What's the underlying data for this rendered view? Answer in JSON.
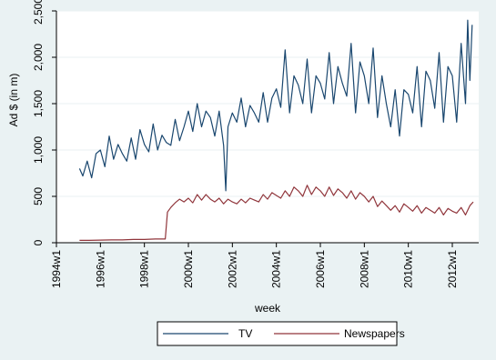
{
  "chart_data": {
    "type": "line",
    "title": "",
    "xlabel": "week",
    "ylabel": "Ad $ (in m)",
    "xlim": [
      1994.0,
      2013.2
    ],
    "ylim": [
      0,
      2500
    ],
    "grid": "horizontal",
    "legend_position": "bottom",
    "y_ticks": [
      {
        "value": 0,
        "label": "0"
      },
      {
        "value": 500,
        "label": "500"
      },
      {
        "value": 1000,
        "label": "1,000"
      },
      {
        "value": 1500,
        "label": "1,500"
      },
      {
        "value": 2000,
        "label": "2,000"
      },
      {
        "value": 2500,
        "label": "2,500"
      }
    ],
    "x_ticks": [
      {
        "value": 1994,
        "label": "1994w1"
      },
      {
        "value": 1996,
        "label": "1996w1"
      },
      {
        "value": 1998,
        "label": "1998w1"
      },
      {
        "value": 2000,
        "label": "2000w1"
      },
      {
        "value": 2002,
        "label": "2002w1"
      },
      {
        "value": 2004,
        "label": "2004w1"
      },
      {
        "value": 2006,
        "label": "2006w1"
      },
      {
        "value": 2008,
        "label": "2008w1"
      },
      {
        "value": 2010,
        "label": "2010w1"
      },
      {
        "value": 2012,
        "label": "2012w1"
      }
    ],
    "series": [
      {
        "name": "TV",
        "color": "#1a476f",
        "points": [
          [
            1995.05,
            800
          ],
          [
            1995.2,
            720
          ],
          [
            1995.4,
            880
          ],
          [
            1995.6,
            700
          ],
          [
            1995.8,
            960
          ],
          [
            1996.0,
            1000
          ],
          [
            1996.2,
            820
          ],
          [
            1996.4,
            1150
          ],
          [
            1996.6,
            900
          ],
          [
            1996.8,
            1060
          ],
          [
            1997.0,
            960
          ],
          [
            1997.2,
            880
          ],
          [
            1997.4,
            1130
          ],
          [
            1997.6,
            900
          ],
          [
            1997.8,
            1220
          ],
          [
            1998.0,
            1060
          ],
          [
            1998.2,
            980
          ],
          [
            1998.4,
            1280
          ],
          [
            1998.6,
            1000
          ],
          [
            1998.8,
            1160
          ],
          [
            1999.0,
            1080
          ],
          [
            1999.2,
            1050
          ],
          [
            1999.4,
            1330
          ],
          [
            1999.6,
            1100
          ],
          [
            1999.8,
            1250
          ],
          [
            2000.0,
            1420
          ],
          [
            2000.2,
            1200
          ],
          [
            2000.4,
            1500
          ],
          [
            2000.6,
            1250
          ],
          [
            2000.8,
            1420
          ],
          [
            2001.0,
            1350
          ],
          [
            2001.2,
            1150
          ],
          [
            2001.4,
            1420
          ],
          [
            2001.6,
            1050
          ],
          [
            2001.7,
            560
          ],
          [
            2001.8,
            1250
          ],
          [
            2002.0,
            1400
          ],
          [
            2002.2,
            1300
          ],
          [
            2002.4,
            1560
          ],
          [
            2002.6,
            1250
          ],
          [
            2002.8,
            1480
          ],
          [
            2003.0,
            1400
          ],
          [
            2003.2,
            1300
          ],
          [
            2003.4,
            1620
          ],
          [
            2003.6,
            1300
          ],
          [
            2003.8,
            1560
          ],
          [
            2004.0,
            1660
          ],
          [
            2004.2,
            1460
          ],
          [
            2004.4,
            2080
          ],
          [
            2004.6,
            1400
          ],
          [
            2004.8,
            1800
          ],
          [
            2005.0,
            1700
          ],
          [
            2005.2,
            1500
          ],
          [
            2005.4,
            1980
          ],
          [
            2005.6,
            1400
          ],
          [
            2005.8,
            1800
          ],
          [
            2006.0,
            1720
          ],
          [
            2006.2,
            1550
          ],
          [
            2006.4,
            2050
          ],
          [
            2006.6,
            1500
          ],
          [
            2006.8,
            1900
          ],
          [
            2007.0,
            1720
          ],
          [
            2007.2,
            1580
          ],
          [
            2007.4,
            2150
          ],
          [
            2007.6,
            1400
          ],
          [
            2007.8,
            1950
          ],
          [
            2008.0,
            1800
          ],
          [
            2008.2,
            1500
          ],
          [
            2008.4,
            2100
          ],
          [
            2008.6,
            1350
          ],
          [
            2008.8,
            1800
          ],
          [
            2009.0,
            1500
          ],
          [
            2009.2,
            1250
          ],
          [
            2009.4,
            1650
          ],
          [
            2009.6,
            1150
          ],
          [
            2009.8,
            1650
          ],
          [
            2010.0,
            1600
          ],
          [
            2010.2,
            1400
          ],
          [
            2010.4,
            1900
          ],
          [
            2010.6,
            1250
          ],
          [
            2010.8,
            1850
          ],
          [
            2011.0,
            1750
          ],
          [
            2011.2,
            1450
          ],
          [
            2011.4,
            2050
          ],
          [
            2011.6,
            1300
          ],
          [
            2011.8,
            1900
          ],
          [
            2012.0,
            1800
          ],
          [
            2012.2,
            1300
          ],
          [
            2012.4,
            2150
          ],
          [
            2012.6,
            1500
          ],
          [
            2012.7,
            2400
          ],
          [
            2012.8,
            1750
          ],
          [
            2012.9,
            2350
          ]
        ]
      },
      {
        "name": "Newspapers",
        "color": "#90353b",
        "points": [
          [
            1995.05,
            25
          ],
          [
            1995.5,
            25
          ],
          [
            1996.0,
            28
          ],
          [
            1996.5,
            30
          ],
          [
            1997.0,
            30
          ],
          [
            1997.5,
            35
          ],
          [
            1998.0,
            35
          ],
          [
            1998.5,
            40
          ],
          [
            1998.95,
            40
          ],
          [
            1999.05,
            330
          ],
          [
            1999.2,
            380
          ],
          [
            1999.4,
            430
          ],
          [
            1999.6,
            470
          ],
          [
            1999.8,
            440
          ],
          [
            2000.0,
            480
          ],
          [
            2000.2,
            430
          ],
          [
            2000.4,
            520
          ],
          [
            2000.6,
            460
          ],
          [
            2000.8,
            520
          ],
          [
            2001.0,
            470
          ],
          [
            2001.2,
            440
          ],
          [
            2001.4,
            480
          ],
          [
            2001.6,
            420
          ],
          [
            2001.8,
            470
          ],
          [
            2002.0,
            440
          ],
          [
            2002.2,
            420
          ],
          [
            2002.4,
            470
          ],
          [
            2002.6,
            430
          ],
          [
            2002.8,
            480
          ],
          [
            2003.0,
            460
          ],
          [
            2003.2,
            440
          ],
          [
            2003.4,
            520
          ],
          [
            2003.6,
            470
          ],
          [
            2003.8,
            540
          ],
          [
            2004.0,
            510
          ],
          [
            2004.2,
            480
          ],
          [
            2004.4,
            560
          ],
          [
            2004.6,
            500
          ],
          [
            2004.8,
            600
          ],
          [
            2005.0,
            560
          ],
          [
            2005.2,
            500
          ],
          [
            2005.4,
            620
          ],
          [
            2005.6,
            520
          ],
          [
            2005.8,
            600
          ],
          [
            2006.0,
            560
          ],
          [
            2006.2,
            500
          ],
          [
            2006.4,
            600
          ],
          [
            2006.6,
            510
          ],
          [
            2006.8,
            580
          ],
          [
            2007.0,
            540
          ],
          [
            2007.2,
            480
          ],
          [
            2007.4,
            560
          ],
          [
            2007.6,
            470
          ],
          [
            2007.8,
            540
          ],
          [
            2008.0,
            500
          ],
          [
            2008.2,
            440
          ],
          [
            2008.4,
            500
          ],
          [
            2008.6,
            390
          ],
          [
            2008.8,
            450
          ],
          [
            2009.0,
            400
          ],
          [
            2009.2,
            350
          ],
          [
            2009.4,
            400
          ],
          [
            2009.6,
            330
          ],
          [
            2009.8,
            420
          ],
          [
            2010.0,
            380
          ],
          [
            2010.2,
            340
          ],
          [
            2010.4,
            400
          ],
          [
            2010.6,
            320
          ],
          [
            2010.8,
            380
          ],
          [
            2011.0,
            350
          ],
          [
            2011.2,
            320
          ],
          [
            2011.4,
            380
          ],
          [
            2011.6,
            300
          ],
          [
            2011.8,
            370
          ],
          [
            2012.0,
            340
          ],
          [
            2012.2,
            320
          ],
          [
            2012.4,
            380
          ],
          [
            2012.6,
            300
          ],
          [
            2012.8,
            400
          ],
          [
            2012.95,
            440
          ]
        ]
      }
    ]
  }
}
